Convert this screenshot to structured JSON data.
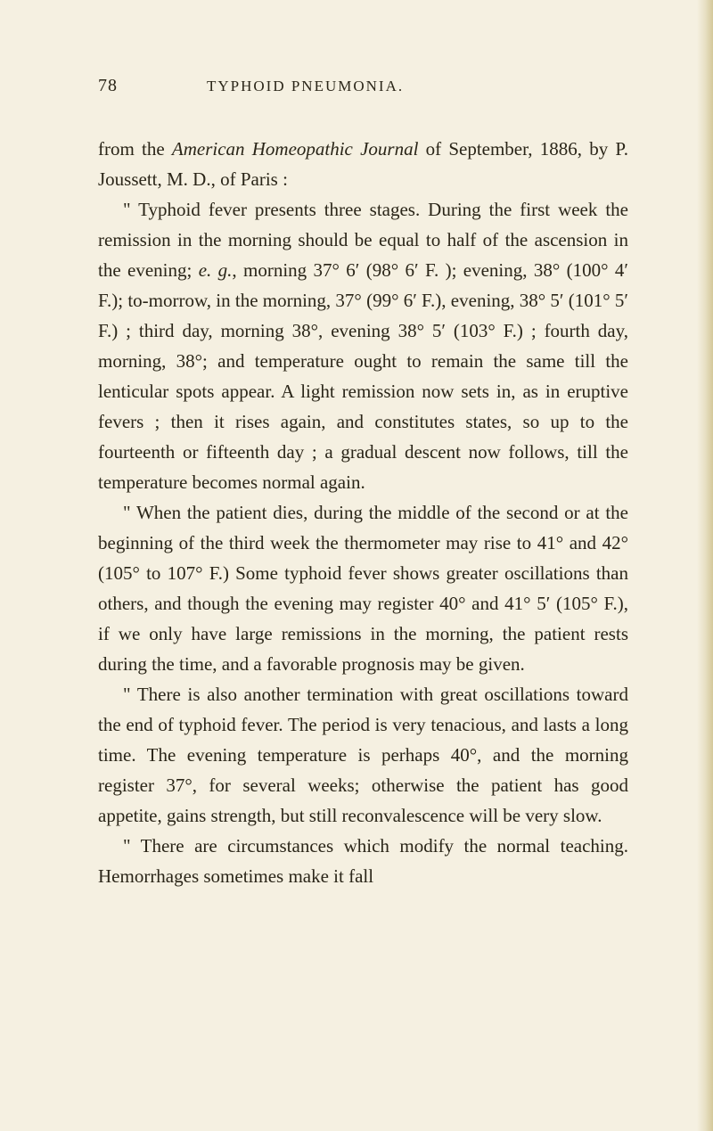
{
  "header": {
    "page_number": "78",
    "chapter_title": "TYPHOID PNEUMONIA."
  },
  "paragraphs": {
    "p1_part1": "from the ",
    "p1_italic1": "American Homeopathic Journal",
    "p1_part2": " of September, 1886, by P. Joussett, M. D., of Paris :",
    "p2_part1": "\" Typhoid fever presents three stages. During the first week the remission in the morning should be equal to half of the ascension in the evening; ",
    "p2_italic1": "e. g.",
    "p2_part2": ", morning 37° 6′ (98° 6′ F. ); evening, 38° (100° 4′ F.); to-morrow, in the morning, 37° (99° 6′ F.), evening, 38° 5′ (101° 5′ F.) ; third day, morning 38°, evening 38° 5′ (103° F.) ; fourth day, morning, 38°; and temperature ought to remain the same till the lenticular spots appear. A light remission now sets in, as in eruptive fevers ; then it rises again, and constitutes states, so up to the fourteenth or fifteenth day ; a gradual descent now follows, till the temperature becomes normal again.",
    "p3": "\" When the patient dies, during the middle of the second or at the beginning of the third week the thermometer may rise to 41° and 42° (105° to 107° F.) Some typhoid fever shows greater oscillations than others, and though the evening may register 40° and 41° 5′ (105° F.), if we only have large remissions in the morning, the patient rests during the time, and a favorable prognosis may be given.",
    "p4": "\" There is also another termination with great oscillations toward the end of typhoid fever. The period is very tenacious, and lasts a long time. The evening temperature is perhaps 40°, and the morning register 37°, for several weeks; otherwise the patient has good appetite, gains strength, but still reconvalescence will be very slow.",
    "p5": "\" There are circumstances which modify the normal teaching. Hemorrhages sometimes make it fall"
  }
}
